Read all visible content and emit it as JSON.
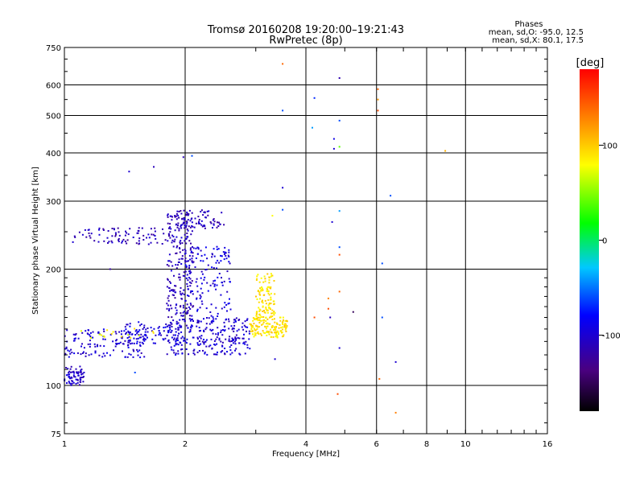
{
  "chart_data": {
    "type": "scatter",
    "title": "Tromsø 20160208 19:20:00–19:21:43",
    "subtitle": "RwPretec (8p)",
    "xlabel": "Frequency [MHz]",
    "ylabel": "Stationary phase Virtual Height [km]",
    "x_scale": "log",
    "y_scale": "log",
    "xlim": [
      1,
      16
    ],
    "ylim": [
      75,
      750
    ],
    "x_ticks": [
      "1",
      "2",
      "4",
      "6",
      "8",
      "10",
      "16"
    ],
    "y_ticks": [
      "75",
      "100",
      "200",
      "300",
      "400",
      "500",
      "600",
      "750"
    ],
    "grid": true,
    "phase_legend": {
      "title": "Phases",
      "line_o": "mean, sd,O: -95.0, 12.5",
      "line_x": "mean, sd,X:  80.1, 17.5"
    },
    "colorbar": {
      "label": "[deg]",
      "range": [
        -180,
        180
      ],
      "ticks": [
        "100",
        "0",
        "-100"
      ],
      "tick_values": [
        100,
        0,
        -100
      ]
    },
    "clusters": [
      {
        "f": [
          1.0,
          1.12
        ],
        "h": [
          100,
          112
        ],
        "phase": -105,
        "count": 70
      },
      {
        "f": [
          1.0,
          1.6
        ],
        "h": [
          118,
          140
        ],
        "phase": -100,
        "count": 140
      },
      {
        "f": [
          1.4,
          2.0
        ],
        "h": [
          128,
          146
        ],
        "phase": -95,
        "count": 90
      },
      {
        "f": [
          1.8,
          2.9
        ],
        "h": [
          120,
          150
        ],
        "phase": -100,
        "count": 260
      },
      {
        "f": [
          1.8,
          2.1
        ],
        "h": [
          150,
          280
        ],
        "phase": -110,
        "count": 220
      },
      {
        "f": [
          2.0,
          2.6
        ],
        "h": [
          150,
          230
        ],
        "phase": -95,
        "count": 130
      },
      {
        "f": [
          1.05,
          1.9
        ],
        "h": [
          232,
          256
        ],
        "phase": -110,
        "count": 90
      },
      {
        "f": [
          1.9,
          2.5
        ],
        "h": [
          255,
          285
        ],
        "phase": -110,
        "count": 70
      },
      {
        "f": [
          2.9,
          3.6
        ],
        "h": [
          133,
          150
        ],
        "phase": 90,
        "count": 150
      },
      {
        "f": [
          3.0,
          3.35
        ],
        "h": [
          150,
          195
        ],
        "phase": 90,
        "count": 110
      },
      {
        "f": [
          1.1,
          1.7
        ],
        "h": [
          132,
          142
        ],
        "phase": 80,
        "count": 16
      }
    ],
    "sparse_points": [
      {
        "f": 1.05,
        "h": 235,
        "phase": -100
      },
      {
        "f": 1.3,
        "h": 200,
        "phase": -120
      },
      {
        "f": 1.45,
        "h": 358,
        "phase": -100
      },
      {
        "f": 1.67,
        "h": 368,
        "phase": -110
      },
      {
        "f": 1.98,
        "h": 390,
        "phase": -110
      },
      {
        "f": 2.08,
        "h": 393,
        "phase": -60
      },
      {
        "f": 3.5,
        "h": 680,
        "phase": 140
      },
      {
        "f": 4.85,
        "h": 625,
        "phase": -115
      },
      {
        "f": 4.2,
        "h": 555,
        "phase": -70
      },
      {
        "f": 3.5,
        "h": 515,
        "phase": -60
      },
      {
        "f": 6.05,
        "h": 585,
        "phase": 140
      },
      {
        "f": 6.05,
        "h": 550,
        "phase": 120
      },
      {
        "f": 6.05,
        "h": 515,
        "phase": 150
      },
      {
        "f": 4.85,
        "h": 485,
        "phase": -60
      },
      {
        "f": 4.15,
        "h": 465,
        "phase": -40
      },
      {
        "f": 4.7,
        "h": 435,
        "phase": -90
      },
      {
        "f": 4.7,
        "h": 410,
        "phase": -100
      },
      {
        "f": 4.85,
        "h": 415,
        "phase": 40
      },
      {
        "f": 8.9,
        "h": 405,
        "phase": 110
      },
      {
        "f": 3.5,
        "h": 325,
        "phase": -100
      },
      {
        "f": 6.5,
        "h": 310,
        "phase": -60
      },
      {
        "f": 3.5,
        "h": 285,
        "phase": -60
      },
      {
        "f": 4.85,
        "h": 283,
        "phase": -40
      },
      {
        "f": 3.3,
        "h": 275,
        "phase": 80
      },
      {
        "f": 4.65,
        "h": 265,
        "phase": -100
      },
      {
        "f": 4.85,
        "h": 228,
        "phase": -60
      },
      {
        "f": 4.85,
        "h": 218,
        "phase": 150
      },
      {
        "f": 6.2,
        "h": 207,
        "phase": -60
      },
      {
        "f": 4.85,
        "h": 175,
        "phase": 140
      },
      {
        "f": 4.55,
        "h": 168,
        "phase": 130
      },
      {
        "f": 4.55,
        "h": 158,
        "phase": 150
      },
      {
        "f": 5.25,
        "h": 155,
        "phase": -150
      },
      {
        "f": 4.2,
        "h": 150,
        "phase": 150
      },
      {
        "f": 4.6,
        "h": 150,
        "phase": -110
      },
      {
        "f": 6.2,
        "h": 150,
        "phase": -60
      },
      {
        "f": 4.85,
        "h": 125,
        "phase": -100
      },
      {
        "f": 3.35,
        "h": 117,
        "phase": -100
      },
      {
        "f": 6.7,
        "h": 115,
        "phase": -100
      },
      {
        "f": 1.5,
        "h": 108,
        "phase": -60
      },
      {
        "f": 6.1,
        "h": 104,
        "phase": 140
      },
      {
        "f": 4.8,
        "h": 95,
        "phase": 150
      },
      {
        "f": 6.7,
        "h": 85,
        "phase": 130
      }
    ]
  }
}
